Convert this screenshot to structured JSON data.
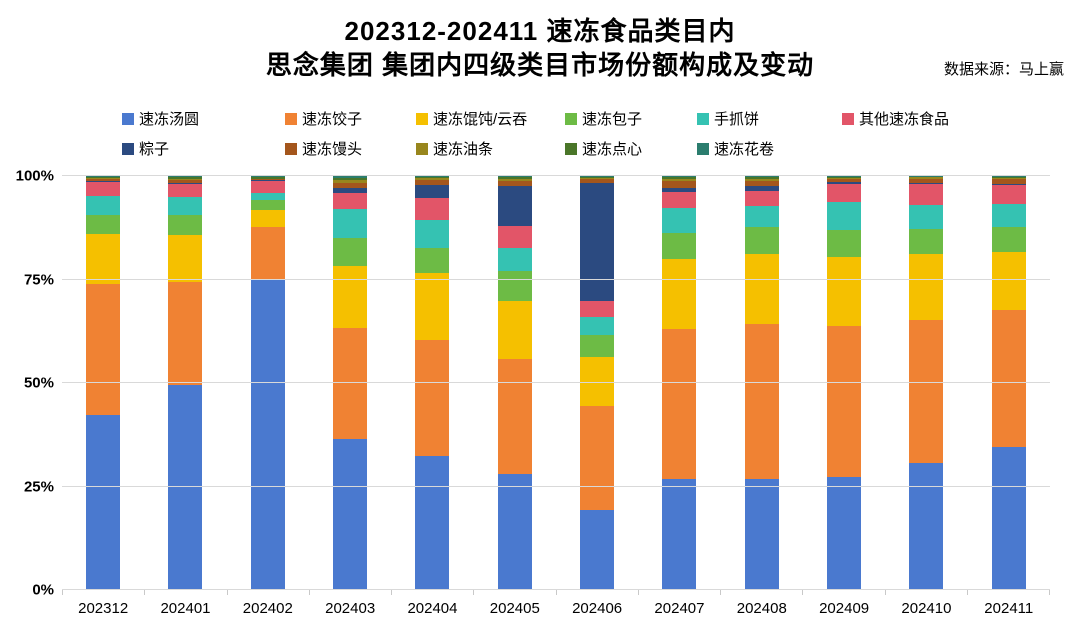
{
  "header": {
    "title_line1": "202312-202411 速冻食品类目内",
    "title_line2": "思念集团 集团内四级类目市场份额构成及变动",
    "source": "数据来源：马上赢"
  },
  "chart_data": {
    "type": "bar",
    "subtype": "stacked-100-percent",
    "title": "202312-202411 速冻食品类目内 思念集团 集团内四级类目市场份额构成及变动",
    "xlabel": "",
    "ylabel": "",
    "ylim": [
      0,
      100
    ],
    "unit": "%",
    "grid": true,
    "legend_position": "top",
    "y_ticks": [
      {
        "label": "0%",
        "value": 0
      },
      {
        "label": "25%",
        "value": 25
      },
      {
        "label": "50%",
        "value": 50
      },
      {
        "label": "75%",
        "value": 75
      },
      {
        "label": "100%",
        "value": 100
      }
    ],
    "categories": [
      "202312",
      "202401",
      "202402",
      "202403",
      "202404",
      "202405",
      "202406",
      "202407",
      "202408",
      "202409",
      "202410",
      "202411"
    ],
    "series": [
      {
        "name": "速冻汤圆",
        "color": "#4A79CF",
        "values": [
          42.3,
          49.6,
          75.1,
          36.5,
          32.3,
          28.0,
          19.3,
          26.9,
          26.9,
          27.2,
          30.7,
          34.5
        ]
      },
      {
        "name": "速冻饺子",
        "color": "#F08233",
        "values": [
          31.7,
          24.9,
          12.5,
          26.7,
          28.2,
          27.9,
          25.1,
          36.2,
          37.4,
          36.5,
          34.6,
          33.2
        ]
      },
      {
        "name": "速冻馄饨/云吞",
        "color": "#F5C000",
        "values": [
          12.1,
          11.3,
          4.3,
          15.0,
          16.0,
          13.8,
          12.0,
          16.9,
          16.9,
          16.7,
          15.9,
          13.9
        ]
      },
      {
        "name": "速冻包子",
        "color": "#6DBB45",
        "values": [
          4.6,
          4.8,
          2.4,
          6.8,
          6.1,
          7.3,
          5.3,
          6.2,
          6.4,
          6.6,
          6.1,
          6.2
        ]
      },
      {
        "name": "手抓饼",
        "color": "#35C2B2",
        "values": [
          4.5,
          4.4,
          1.6,
          7.0,
          6.8,
          5.6,
          4.2,
          6.2,
          5.1,
          6.7,
          5.8,
          5.4
        ]
      },
      {
        "name": "其他速冻食品",
        "color": "#E25568",
        "values": [
          3.4,
          3.2,
          3.0,
          3.9,
          5.3,
          5.3,
          4.0,
          3.7,
          3.8,
          4.4,
          5.0,
          4.7
        ]
      },
      {
        "name": "粽子",
        "color": "#2B4A80",
        "values": [
          0.1,
          0.2,
          0.1,
          1.2,
          3.2,
          9.6,
          28.4,
          1.1,
          1.0,
          0.5,
          0.3,
          0.2
        ]
      },
      {
        "name": "速冻馒头",
        "color": "#A4561C",
        "values": [
          0.6,
          0.7,
          0.3,
          1.3,
          1.2,
          1.2,
          1.0,
          1.5,
          1.3,
          0.7,
          1.0,
          1.2
        ]
      },
      {
        "name": "速冻油条",
        "color": "#98861D",
        "values": [
          0.2,
          0.3,
          0.1,
          0.6,
          0.5,
          0.7,
          0.3,
          0.6,
          0.5,
          0.3,
          0.3,
          0.3
        ]
      },
      {
        "name": "速冻点心",
        "color": "#4A7629",
        "values": [
          0.4,
          0.3,
          0.4,
          0.6,
          0.3,
          0.4,
          0.2,
          0.4,
          0.4,
          0.2,
          0.2,
          0.2
        ]
      },
      {
        "name": "速冻花卷",
        "color": "#2B7D6E",
        "values": [
          0.1,
          0.3,
          0.2,
          0.4,
          0.1,
          0.2,
          0.2,
          0.3,
          0.3,
          0.2,
          0.1,
          0.2
        ]
      }
    ],
    "legend_rows": [
      6,
      5
    ],
    "colors": {
      "gridline": "#d9d9d9",
      "background": "#ffffff",
      "text": "#000000"
    }
  }
}
